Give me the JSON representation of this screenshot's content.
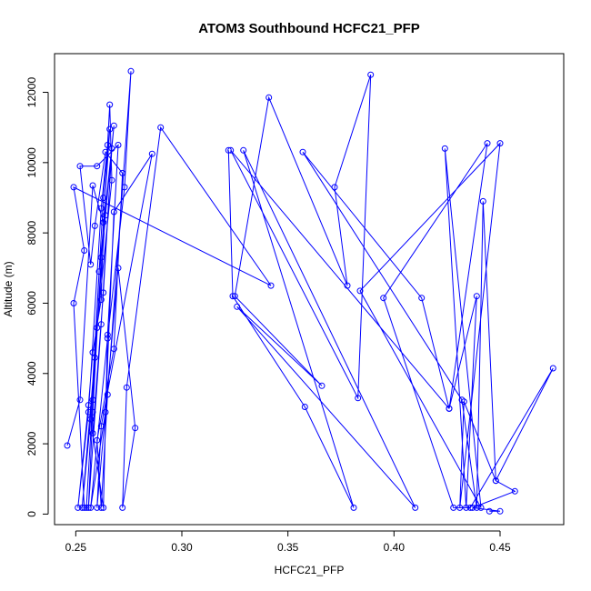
{
  "chart_data": {
    "type": "line",
    "title": "ATOM3 Southbound HCFC21_PFP",
    "xlabel": "HCFC21_PFP",
    "ylabel": "Altitude (m)",
    "xlim": [
      0.24,
      0.48
    ],
    "ylim": [
      -300,
      13100
    ],
    "xticks": [
      0.25,
      0.3,
      0.35,
      0.4,
      0.45
    ],
    "xtick_labels": [
      "0.25",
      "0.30",
      "0.35",
      "0.40",
      "0.45"
    ],
    "yticks": [
      0,
      2000,
      4000,
      6000,
      8000,
      10000,
      12000
    ],
    "ytick_labels": [
      "0",
      "2000",
      "4000",
      "6000",
      "8000",
      "10000",
      "12000"
    ],
    "color": "#0000ff",
    "markers": "open-circle",
    "series": [
      {
        "values": [
          [
            0.246,
            1950
          ],
          [
            0.252,
            3250
          ],
          [
            0.258,
            9350
          ],
          [
            0.263,
            8300
          ],
          [
            0.262,
            6100
          ],
          [
            0.258,
            4600
          ],
          [
            0.256,
            3100
          ],
          [
            0.251,
            180
          ],
          [
            0.256,
            2900
          ],
          [
            0.262,
            8700
          ],
          [
            0.265,
            10500
          ],
          [
            0.266,
            11650
          ],
          [
            0.267,
            9500
          ],
          [
            0.26,
            5300
          ],
          [
            0.255,
            180
          ],
          [
            0.258,
            3250
          ],
          [
            0.261,
            6900
          ],
          [
            0.268,
            11050
          ],
          [
            0.264,
            8500
          ],
          [
            0.259,
            4450
          ],
          [
            0.253,
            180
          ],
          [
            0.257,
            2700
          ],
          [
            0.263,
            9000
          ],
          [
            0.266,
            10950
          ],
          [
            0.262,
            7300
          ],
          [
            0.258,
            2900
          ],
          [
            0.256,
            180
          ],
          [
            0.262,
            5400
          ],
          [
            0.267,
            10400
          ],
          [
            0.263,
            6300
          ],
          [
            0.258,
            2300
          ],
          [
            0.263,
            180
          ],
          [
            0.265,
            5100
          ],
          [
            0.27,
            10500
          ],
          [
            0.26,
            9900
          ],
          [
            0.252,
            9900
          ],
          [
            0.257,
            7100
          ],
          [
            0.259,
            8200
          ],
          [
            0.264,
            10300
          ],
          [
            0.272,
            9700
          ],
          [
            0.268,
            4700
          ],
          [
            0.26,
            2100
          ],
          [
            0.262,
            180
          ],
          [
            0.265,
            3400
          ],
          [
            0.276,
            12600
          ],
          [
            0.273,
            9300
          ],
          [
            0.265,
            5000
          ],
          [
            0.257,
            180
          ],
          [
            0.264,
            2900
          ],
          [
            0.268,
            8600
          ],
          [
            0.286,
            10250
          ],
          [
            0.262,
            2500
          ],
          [
            0.26,
            180
          ],
          [
            0.27,
            7000
          ],
          [
            0.278,
            2450
          ],
          [
            0.272,
            180
          ],
          [
            0.274,
            3600
          ],
          [
            0.29,
            11000
          ],
          [
            0.342,
            6500
          ],
          [
            0.249,
            9300
          ],
          [
            0.254,
            7500
          ],
          [
            0.249,
            6000
          ],
          [
            0.254,
            180
          ]
        ]
      },
      {
        "values": [
          [
            0.322,
            10350
          ],
          [
            0.324,
            6200
          ],
          [
            0.358,
            3050
          ],
          [
            0.381,
            180
          ],
          [
            0.329,
            10350
          ],
          [
            0.41,
            180
          ],
          [
            0.326,
            5900
          ],
          [
            0.366,
            3650
          ],
          [
            0.325,
            6200
          ],
          [
            0.341,
            11850
          ],
          [
            0.378,
            6500
          ],
          [
            0.372,
            9300
          ],
          [
            0.389,
            12500
          ],
          [
            0.383,
            3300
          ],
          [
            0.323,
            10350
          ],
          [
            0.426,
            3000
          ],
          [
            0.413,
            6150
          ],
          [
            0.357,
            10300
          ],
          [
            0.432,
            3250
          ],
          [
            0.439,
            180
          ],
          [
            0.442,
            8900
          ],
          [
            0.448,
            950
          ],
          [
            0.433,
            3200
          ],
          [
            0.431,
            180
          ],
          [
            0.45,
            10550
          ],
          [
            0.384,
            6350
          ],
          [
            0.441,
            180
          ],
          [
            0.424,
            10400
          ],
          [
            0.434,
            180
          ],
          [
            0.439,
            6200
          ],
          [
            0.426,
            3000
          ],
          [
            0.444,
            10550
          ],
          [
            0.395,
            6150
          ],
          [
            0.428,
            180
          ],
          [
            0.436,
            180
          ],
          [
            0.475,
            4150
          ],
          [
            0.448,
            950
          ],
          [
            0.457,
            650
          ],
          [
            0.437,
            180
          ],
          [
            0.45,
            80
          ],
          [
            0.445,
            80
          ]
        ]
      }
    ]
  }
}
